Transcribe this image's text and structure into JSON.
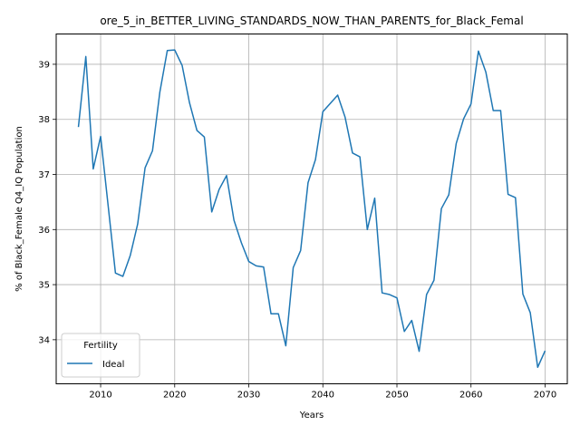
{
  "chart_data": {
    "type": "line",
    "title": "ore_5_in_BETTER_LIVING_STANDARDS_NOW_THAN_PARENTS_for_Black_Femal",
    "xlabel": "Years",
    "ylabel": "% of Black_Female Q4_IQ Population",
    "xlim": [
      2004,
      2073
    ],
    "ylim": [
      33.2,
      39.55
    ],
    "xticks": [
      2010,
      2020,
      2030,
      2040,
      2050,
      2060,
      2070
    ],
    "yticks": [
      34,
      35,
      36,
      37,
      38,
      39
    ],
    "grid": true,
    "legend": {
      "title": "Fertility",
      "placement": "lower-left"
    },
    "series": [
      {
        "name": "Ideal",
        "color": "#1f77b4",
        "x": [
          2007,
          2008,
          2009,
          2010,
          2011,
          2012,
          2013,
          2014,
          2015,
          2016,
          2017,
          2018,
          2019,
          2020,
          2021,
          2022,
          2023,
          2024,
          2025,
          2026,
          2027,
          2028,
          2029,
          2030,
          2031,
          2032,
          2033,
          2034,
          2035,
          2036,
          2037,
          2038,
          2039,
          2040,
          2041,
          2042,
          2043,
          2044,
          2045,
          2046,
          2047,
          2048,
          2049,
          2050,
          2051,
          2052,
          2053,
          2054,
          2055,
          2056,
          2057,
          2058,
          2059,
          2060,
          2061,
          2062,
          2063,
          2064,
          2065,
          2066,
          2067,
          2068,
          2069,
          2070
        ],
        "values": [
          37.86,
          39.14,
          37.1,
          37.69,
          36.45,
          35.21,
          35.15,
          35.53,
          36.1,
          37.12,
          37.43,
          38.5,
          39.25,
          39.26,
          38.98,
          38.3,
          37.8,
          37.68,
          36.32,
          36.73,
          36.98,
          36.17,
          35.76,
          35.42,
          35.34,
          35.32,
          34.47,
          34.47,
          33.89,
          35.31,
          35.62,
          36.85,
          37.27,
          38.14,
          38.29,
          38.44,
          38.04,
          37.39,
          37.32,
          36.0,
          36.57,
          34.85,
          34.82,
          34.76,
          34.15,
          34.35,
          33.79,
          34.82,
          35.08,
          36.38,
          36.63,
          37.56,
          38.01,
          38.28,
          39.24,
          38.86,
          38.16,
          38.16,
          36.64,
          36.58,
          34.83,
          34.49,
          33.5,
          33.8
        ]
      }
    ]
  }
}
